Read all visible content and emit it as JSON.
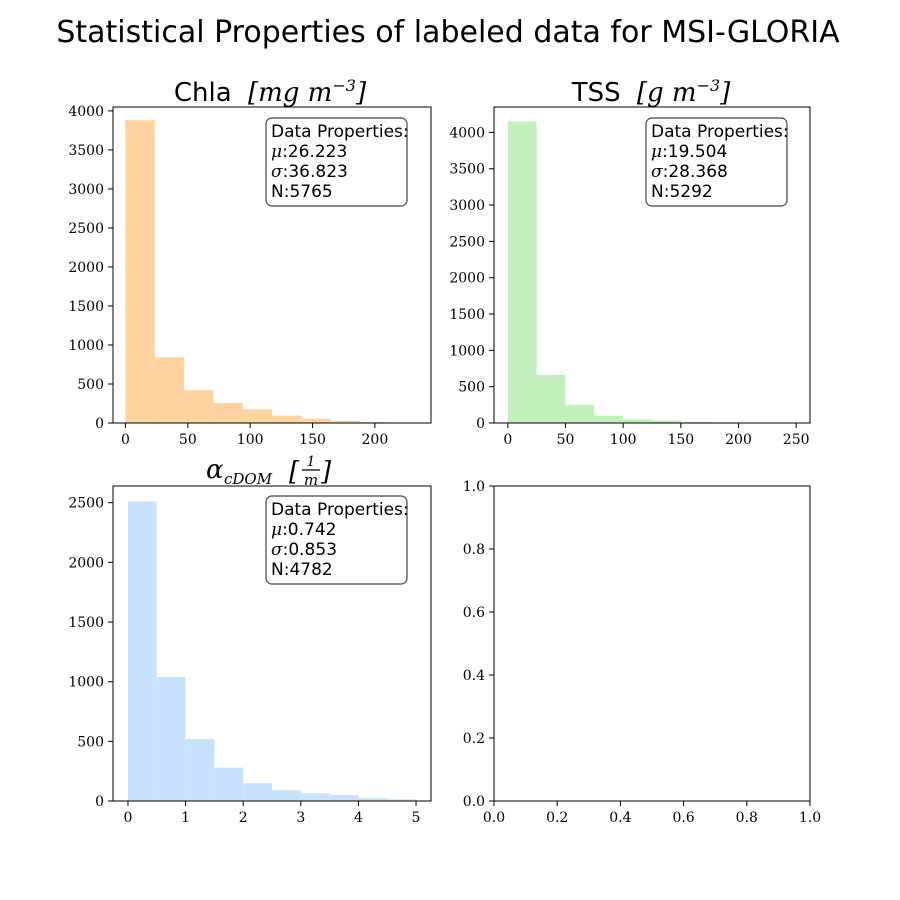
{
  "figure": {
    "title": "Statistical Properties of labeled data for MSI-GLORIA"
  },
  "chart_data": [
    {
      "type": "bar",
      "title_text": "Chla",
      "title_units": "[mg m",
      "title_exp": "−3",
      "title_close": "]",
      "color": "#fed39f",
      "xlim": [
        -10,
        245
      ],
      "ylim": [
        0,
        4050
      ],
      "xticks": [
        0,
        50,
        100,
        150,
        200
      ],
      "yticks": [
        0,
        500,
        1000,
        1500,
        2000,
        2500,
        3000,
        3500,
        4000
      ],
      "bin_edges": [
        0,
        23.5,
        47,
        70.5,
        94,
        117.5,
        141,
        164.5,
        188,
        211.5,
        235
      ],
      "values": [
        3880,
        840,
        420,
        255,
        175,
        95,
        55,
        25,
        12,
        8
      ],
      "stats_heading": "Data Properties:",
      "stats": [
        {
          "symbol": "μ",
          "value": ":26.223"
        },
        {
          "symbol": "σ",
          "value": ":36.823"
        },
        {
          "symbol": "",
          "value": "N:5765"
        }
      ]
    },
    {
      "type": "bar",
      "title_text": "TSS",
      "title_units": "[g m",
      "title_exp": "−3",
      "title_close": "]",
      "color": "#c1f0bb",
      "xlim": [
        -12,
        262
      ],
      "ylim": [
        0,
        4350
      ],
      "xticks": [
        0,
        50,
        100,
        150,
        200,
        250
      ],
      "yticks": [
        0,
        500,
        1000,
        1500,
        2000,
        2500,
        3000,
        3500,
        4000
      ],
      "bin_edges": [
        0,
        25,
        50,
        75,
        100,
        125,
        150,
        175,
        200,
        225,
        250
      ],
      "values": [
        4150,
        660,
        250,
        100,
        50,
        35,
        15,
        10,
        5,
        5
      ],
      "stats_heading": "Data Properties:",
      "stats": [
        {
          "symbol": "μ",
          "value": ":19.504"
        },
        {
          "symbol": "σ",
          "value": ":28.368"
        },
        {
          "symbol": "",
          "value": "N:5292"
        }
      ]
    },
    {
      "type": "bar",
      "title_alpha": "α",
      "title_sub": "cDOM",
      "title_frac_num": "1",
      "title_frac_den": "m",
      "color": "#c8e2fe",
      "xlim": [
        -0.26,
        5.26
      ],
      "ylim": [
        0,
        2640
      ],
      "xticks": [
        0,
        1,
        2,
        3,
        4,
        5
      ],
      "yticks": [
        0,
        500,
        1000,
        1500,
        2000,
        2500
      ],
      "bin_edges": [
        0,
        0.5,
        1,
        1.5,
        2,
        2.5,
        3,
        3.5,
        4,
        4.5,
        5
      ],
      "values": [
        2510,
        1040,
        520,
        280,
        150,
        90,
        65,
        50,
        25,
        15
      ],
      "stats_heading": "Data Properties:",
      "stats": [
        {
          "symbol": "μ",
          "value": ":0.742"
        },
        {
          "symbol": "σ",
          "value": ":0.853"
        },
        {
          "symbol": "",
          "value": "N:4782"
        }
      ]
    },
    {
      "type": "bar",
      "xlim": [
        0,
        1
      ],
      "ylim": [
        0,
        1
      ],
      "xticks": [
        "0.0",
        "0.2",
        "0.4",
        "0.6",
        "0.8",
        "1.0"
      ],
      "yticks": [
        "0.0",
        "0.2",
        "0.4",
        "0.6",
        "0.8",
        "1.0"
      ],
      "values": []
    }
  ]
}
